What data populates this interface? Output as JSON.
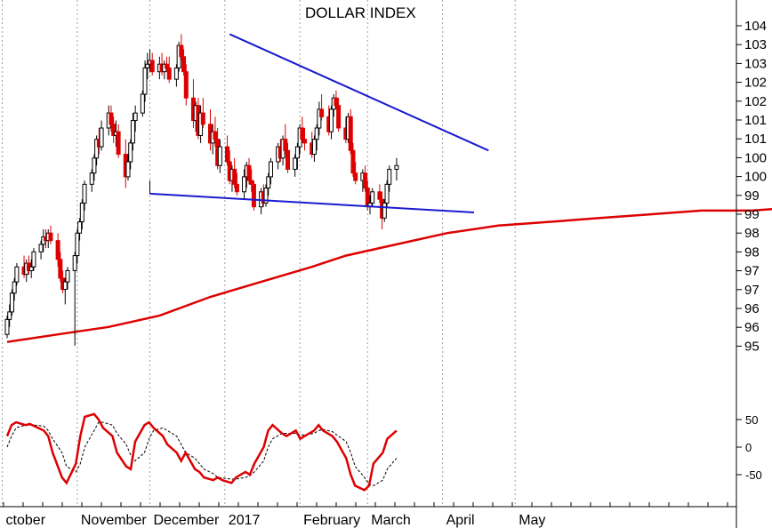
{
  "chart_data": [
    {
      "type": "candlestick",
      "title": "DOLLAR INDEX",
      "y_ticks": [
        "104",
        "103",
        "103",
        "102",
        "102",
        "101",
        "101",
        "100",
        "100",
        "99",
        "99",
        "98",
        "98",
        "97",
        "97",
        "96",
        "96",
        "95"
      ],
      "x_labels": [
        "ctober",
        "November",
        "December",
        "2017",
        "February",
        "March",
        "April",
        "May"
      ],
      "colors": {
        "up": "#000000",
        "down": "#dd0000",
        "ma": "#dd0000",
        "trendline": "#1a1ad0",
        "grid": "#a0a0a0"
      },
      "candles_start_date": "2016-10-03",
      "candles": [
        [
          95.8,
          96.3,
          95.7,
          96.2
        ],
        [
          96.2,
          96.6,
          96.0,
          96.4
        ],
        [
          96.4,
          97.0,
          96.3,
          96.9
        ],
        [
          96.9,
          97.3,
          96.7,
          97.2
        ],
        [
          97.2,
          97.7,
          97.1,
          97.6
        ],
        [
          97.6,
          97.9,
          97.3,
          97.4
        ],
        [
          97.4,
          97.8,
          97.2,
          97.7
        ],
        [
          97.7,
          97.9,
          97.4,
          97.5
        ],
        [
          97.5,
          97.8,
          97.3,
          97.6
        ],
        [
          97.6,
          98.1,
          97.5,
          98.0
        ],
        [
          98.0,
          98.3,
          97.8,
          98.2
        ],
        [
          98.2,
          98.6,
          98.0,
          98.4
        ],
        [
          98.4,
          98.6,
          98.1,
          98.3
        ],
        [
          98.3,
          98.6,
          98.1,
          98.5
        ],
        [
          98.5,
          98.7,
          98.2,
          98.3
        ],
        [
          98.3,
          98.5,
          97.6,
          97.8
        ],
        [
          97.8,
          98.0,
          97.2,
          97.3
        ],
        [
          97.3,
          97.5,
          96.9,
          97.0
        ],
        [
          97.0,
          97.3,
          96.6,
          97.2
        ],
        [
          97.2,
          97.6,
          97.0,
          97.5
        ],
        [
          97.5,
          98.0,
          95.5,
          97.9
        ],
        [
          97.9,
          98.6,
          97.7,
          98.5
        ],
        [
          98.5,
          98.9,
          98.3,
          98.8
        ],
        [
          98.8,
          99.4,
          98.6,
          99.3
        ],
        [
          99.3,
          99.9,
          99.1,
          99.8
        ],
        [
          99.8,
          100.2,
          99.6,
          100.1
        ],
        [
          100.1,
          100.6,
          99.9,
          100.5
        ],
        [
          100.5,
          101.1,
          100.3,
          101.0
        ],
        [
          101.0,
          101.3,
          100.6,
          100.8
        ],
        [
          100.8,
          101.5,
          100.7,
          101.3
        ],
        [
          101.3,
          101.9,
          101.1,
          101.7
        ],
        [
          101.7,
          101.9,
          101.2,
          101.4
        ],
        [
          101.4,
          101.6,
          100.9,
          101.1
        ],
        [
          101.1,
          101.5,
          100.8,
          101.2
        ],
        [
          101.2,
          101.4,
          100.5,
          100.6
        ],
        [
          100.6,
          101.0,
          99.7,
          100.0
        ],
        [
          100.0,
          100.6,
          99.9,
          100.4
        ],
        [
          100.4,
          101.0,
          100.2,
          100.9
        ],
        [
          100.9,
          101.7,
          100.7,
          101.5
        ],
        [
          101.5,
          101.9,
          101.2,
          101.7
        ],
        [
          101.7,
          102.3,
          101.6,
          102.2
        ],
        [
          102.2,
          103.1,
          102.0,
          102.9
        ],
        [
          102.9,
          103.3,
          102.6,
          103.0
        ],
        [
          103.0,
          103.4,
          102.8,
          103.1
        ],
        [
          103.1,
          103.3,
          102.7,
          102.8
        ],
        [
          102.8,
          103.2,
          102.6,
          103.0
        ],
        [
          103.0,
          103.3,
          102.7,
          102.8
        ],
        [
          102.8,
          103.1,
          102.6,
          103.0
        ],
        [
          103.0,
          103.2,
          102.8,
          102.9
        ],
        [
          102.9,
          103.2,
          102.5,
          102.6
        ],
        [
          102.6,
          103.0,
          102.4,
          102.9
        ],
        [
          102.9,
          103.6,
          102.8,
          103.5
        ],
        [
          103.5,
          103.8,
          103.1,
          103.2
        ],
        [
          103.2,
          103.4,
          102.7,
          102.8
        ],
        [
          102.8,
          103.0,
          101.9,
          102.1
        ],
        [
          102.1,
          102.6,
          101.3,
          101.5
        ],
        [
          101.5,
          102.0,
          101.2,
          101.9
        ],
        [
          101.9,
          102.1,
          101.0,
          101.1
        ],
        [
          101.1,
          101.9,
          100.9,
          101.7
        ],
        [
          101.7,
          102.1,
          101.3,
          101.4
        ],
        [
          101.4,
          101.8,
          100.7,
          100.9
        ],
        [
          100.9,
          101.4,
          100.6,
          101.2
        ],
        [
          101.2,
          101.6,
          100.8,
          101.0
        ],
        [
          101.0,
          101.3,
          100.2,
          100.3
        ],
        [
          100.3,
          101.0,
          100.1,
          100.8
        ],
        [
          100.8,
          101.1,
          100.3,
          100.4
        ],
        [
          100.4,
          100.7,
          99.8,
          99.9
        ],
        [
          99.9,
          100.3,
          99.6,
          100.2
        ],
        [
          100.2,
          100.5,
          99.7,
          99.8
        ],
        [
          99.8,
          100.1,
          99.5,
          99.6
        ],
        [
          99.6,
          100.2,
          99.4,
          100.0
        ],
        [
          100.0,
          100.4,
          99.7,
          100.3
        ],
        [
          100.3,
          100.5,
          99.8,
          99.9
        ],
        [
          99.9,
          100.2,
          99.6,
          99.8
        ],
        [
          99.8,
          99.9,
          99.1,
          99.2
        ],
        [
          99.2,
          99.7,
          99.0,
          99.6
        ],
        [
          99.6,
          99.8,
          99.2,
          99.3
        ],
        [
          99.3,
          99.8,
          99.2,
          99.7
        ],
        [
          99.7,
          100.1,
          99.5,
          100.0
        ],
        [
          100.0,
          100.5,
          99.8,
          100.4
        ],
        [
          100.4,
          100.9,
          100.2,
          100.8
        ],
        [
          100.8,
          101.0,
          100.4,
          100.5
        ],
        [
          100.5,
          101.1,
          100.3,
          101.0
        ],
        [
          101.0,
          101.4,
          100.6,
          100.7
        ],
        [
          100.7,
          100.9,
          100.1,
          100.2
        ],
        [
          100.2,
          100.6,
          100.0,
          100.5
        ],
        [
          100.5,
          100.9,
          100.2,
          100.8
        ],
        [
          100.8,
          101.4,
          100.6,
          101.3
        ],
        [
          101.3,
          101.6,
          100.9,
          101.0
        ],
        [
          101.0,
          101.3,
          100.7,
          100.9
        ],
        [
          100.9,
          101.2,
          100.5,
          100.6
        ],
        [
          100.6,
          101.1,
          100.4,
          101.0
        ],
        [
          101.0,
          101.4,
          100.7,
          101.3
        ],
        [
          101.3,
          102.0,
          101.1,
          101.8
        ],
        [
          101.8,
          102.2,
          101.5,
          101.6
        ],
        [
          101.6,
          101.9,
          101.1,
          101.2
        ],
        [
          101.2,
          101.9,
          101.0,
          101.8
        ],
        [
          101.8,
          102.2,
          101.6,
          102.1
        ],
        [
          102.1,
          102.3,
          101.8,
          101.9
        ],
        [
          101.9,
          102.1,
          101.2,
          101.3
        ],
        [
          101.3,
          101.6,
          100.9,
          101.0
        ],
        [
          101.0,
          101.7,
          100.9,
          101.6
        ],
        [
          101.6,
          101.8,
          100.6,
          100.7
        ],
        [
          100.7,
          100.9,
          100.0,
          100.1
        ],
        [
          100.1,
          100.4,
          99.8,
          99.9
        ],
        [
          99.9,
          100.2,
          99.6,
          100.1
        ],
        [
          100.1,
          100.3,
          99.6,
          99.7
        ],
        [
          99.7,
          99.9,
          99.1,
          99.2
        ],
        [
          99.2,
          99.5,
          99.0,
          99.3
        ],
        [
          99.3,
          99.7,
          99.2,
          99.6
        ],
        [
          99.6,
          99.8,
          99.3,
          99.4
        ],
        [
          99.4,
          99.6,
          98.6,
          98.9
        ],
        [
          98.9,
          99.4,
          98.8,
          99.3
        ],
        [
          99.3,
          99.9,
          99.2,
          99.8
        ],
        [
          99.8,
          100.3,
          99.6,
          100.2
        ],
        [
          100.2,
          100.5,
          99.9,
          100.3
        ]
      ],
      "ma_points": [
        [
          0,
          95.6
        ],
        [
          15,
          95.8
        ],
        [
          30,
          96.0
        ],
        [
          45,
          96.3
        ],
        [
          60,
          96.8
        ],
        [
          75,
          97.2
        ],
        [
          90,
          97.6
        ],
        [
          100,
          97.9
        ],
        [
          115,
          98.2
        ],
        [
          130,
          98.5
        ],
        [
          145,
          98.7
        ],
        [
          160,
          98.8
        ],
        [
          175,
          98.9
        ],
        [
          190,
          99.0
        ],
        [
          205,
          99.1
        ],
        [
          220,
          99.1
        ],
        [
          235,
          99.2
        ],
        [
          245,
          99.25
        ]
      ],
      "trendline_upper": [
        [
          "2017-01-03",
          103.8
        ],
        [
          "2017-04-20",
          100.7
        ]
      ],
      "trendline_lower": [
        [
          "2016-12-01",
          99.55
        ],
        [
          "2017-04-14",
          99.05
        ]
      ],
      "oscillator": {
        "y_ticks": [
          "50",
          "0",
          "-50"
        ],
        "fast": [
          20,
          40,
          45,
          40,
          42,
          38,
          30,
          20,
          -10,
          -55,
          -65,
          -30,
          20,
          55,
          60,
          50,
          35,
          20,
          -10,
          -35,
          -40,
          10,
          40,
          45,
          35,
          20,
          5,
          -10,
          -25,
          -10,
          -40,
          -45,
          -55,
          -60,
          -55,
          -60,
          -65,
          -55,
          -45,
          -50,
          -30,
          0,
          30,
          40,
          25,
          20,
          30,
          15,
          20,
          30,
          40,
          30,
          20,
          10,
          -20,
          -50,
          -70,
          -78,
          -70,
          -30,
          -10,
          15,
          30
        ],
        "slow": [
          0,
          20,
          35,
          40,
          40,
          40,
          38,
          30,
          15,
          -10,
          -35,
          -45,
          -30,
          0,
          30,
          45,
          45,
          40,
          25,
          5,
          -15,
          -25,
          -10,
          15,
          30,
          35,
          30,
          20,
          5,
          -10,
          -20,
          -30,
          -40,
          -48,
          -55,
          -56,
          -58,
          -58,
          -55,
          -52,
          -45,
          -25,
          0,
          15,
          25,
          25,
          25,
          22,
          22,
          25,
          30,
          32,
          28,
          22,
          10,
          -10,
          -35,
          -55,
          -68,
          -70,
          -60,
          -40,
          -20
        ]
      }
    }
  ]
}
